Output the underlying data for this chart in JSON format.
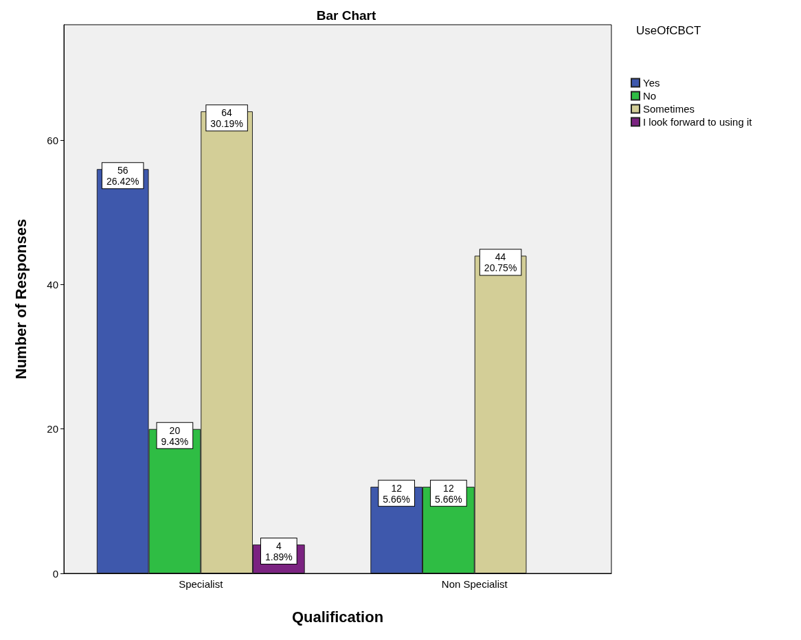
{
  "chart_data": {
    "type": "bar",
    "title": "Bar Chart",
    "xlabel": "Qualification",
    "ylabel": "Number of Responses",
    "legend_title": "UseOfCBCT",
    "legend": "top right",
    "grid": false,
    "categories": [
      "Specialist",
      "Non Specialist"
    ],
    "ylim": [
      0,
      76
    ],
    "yticks": [
      0,
      20,
      40,
      60
    ],
    "series": [
      {
        "name": "Yes",
        "color": "#3e58ac",
        "values": [
          56,
          12
        ],
        "value_labels": [
          "56\n26.42%",
          "12\n5.66%"
        ]
      },
      {
        "name": "No",
        "color": "#2fbd44",
        "values": [
          20,
          12
        ],
        "value_labels": [
          "20\n9.43%",
          "12\n5.66%"
        ]
      },
      {
        "name": "Sometimes",
        "color": "#d3ce97",
        "values": [
          64,
          44
        ],
        "value_labels": [
          "64\n30.19%",
          "44\n20.75%"
        ]
      },
      {
        "name": "I look forward to using it",
        "color": "#7b2381",
        "values": [
          4,
          null
        ],
        "value_labels": [
          "4\n1.89%",
          null
        ]
      }
    ]
  }
}
